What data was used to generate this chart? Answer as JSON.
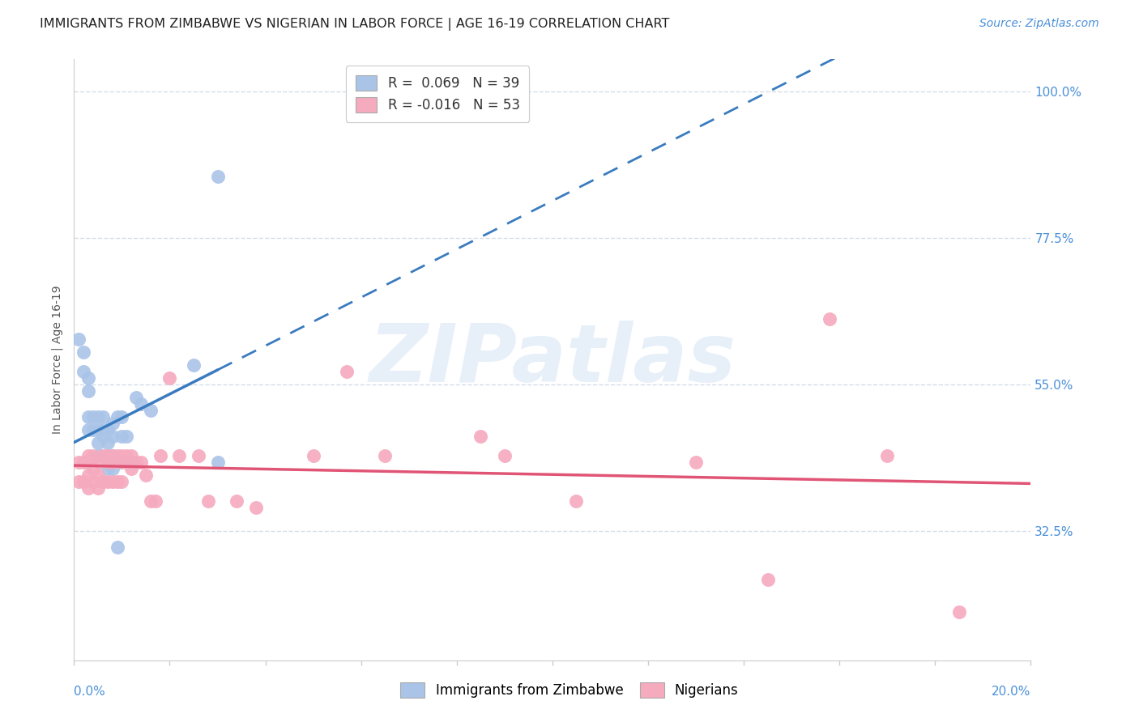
{
  "title": "IMMIGRANTS FROM ZIMBABWE VS NIGERIAN IN LABOR FORCE | AGE 16-19 CORRELATION CHART",
  "source": "Source: ZipAtlas.com",
  "ylabel": "In Labor Force | Age 16-19",
  "ytick_values": [
    0.325,
    0.55,
    0.775,
    1.0
  ],
  "ytick_labels": [
    "32.5%",
    "55.0%",
    "77.5%",
    "100.0%"
  ],
  "xlim": [
    0.0,
    0.2
  ],
  "ylim": [
    0.125,
    1.05
  ],
  "watermark": "ZIPatlas",
  "legend_r1": "R =  0.069",
  "legend_n1": "N = 39",
  "legend_r2": "R = -0.016",
  "legend_n2": "N = 53",
  "zimbabwe_color": "#aac4e8",
  "nigeria_color": "#f5aabe",
  "zimbabwe_line_color": "#3a7bbf",
  "nigeria_line_color": "#e05575",
  "grid_color": "#d5dce8",
  "background_color": "#ffffff",
  "title_color": "#222222",
  "source_color": "#4a90d9",
  "axis_label_color": "#555555",
  "tick_color": "#4a90d9",
  "zimbabwe_points_x": [
    0.001,
    0.002,
    0.002,
    0.003,
    0.003,
    0.003,
    0.003,
    0.004,
    0.004,
    0.005,
    0.005,
    0.005,
    0.005,
    0.006,
    0.006,
    0.006,
    0.006,
    0.007,
    0.007,
    0.007,
    0.007,
    0.007,
    0.008,
    0.008,
    0.008,
    0.008,
    0.009,
    0.009,
    0.01,
    0.01,
    0.01,
    0.011,
    0.012,
    0.013,
    0.014,
    0.016,
    0.025,
    0.03,
    0.03
  ],
  "zimbabwe_points_y": [
    0.62,
    0.6,
    0.57,
    0.56,
    0.54,
    0.5,
    0.48,
    0.5,
    0.48,
    0.5,
    0.48,
    0.46,
    0.44,
    0.5,
    0.48,
    0.47,
    0.44,
    0.48,
    0.46,
    0.44,
    0.43,
    0.42,
    0.49,
    0.47,
    0.44,
    0.42,
    0.5,
    0.3,
    0.5,
    0.47,
    0.43,
    0.47,
    0.43,
    0.53,
    0.52,
    0.51,
    0.58,
    0.87,
    0.43
  ],
  "nigeria_points_x": [
    0.001,
    0.001,
    0.002,
    0.002,
    0.003,
    0.003,
    0.003,
    0.003,
    0.004,
    0.004,
    0.004,
    0.005,
    0.005,
    0.005,
    0.006,
    0.006,
    0.007,
    0.007,
    0.007,
    0.008,
    0.008,
    0.008,
    0.009,
    0.009,
    0.01,
    0.01,
    0.01,
    0.011,
    0.012,
    0.012,
    0.013,
    0.014,
    0.015,
    0.016,
    0.017,
    0.018,
    0.02,
    0.022,
    0.026,
    0.028,
    0.034,
    0.038,
    0.05,
    0.057,
    0.065,
    0.085,
    0.09,
    0.105,
    0.13,
    0.145,
    0.158,
    0.17,
    0.185
  ],
  "nigeria_points_y": [
    0.43,
    0.4,
    0.43,
    0.4,
    0.44,
    0.43,
    0.41,
    0.39,
    0.44,
    0.42,
    0.4,
    0.43,
    0.41,
    0.39,
    0.44,
    0.4,
    0.44,
    0.43,
    0.4,
    0.44,
    0.43,
    0.4,
    0.44,
    0.4,
    0.44,
    0.43,
    0.4,
    0.44,
    0.44,
    0.42,
    0.43,
    0.43,
    0.41,
    0.37,
    0.37,
    0.44,
    0.56,
    0.44,
    0.44,
    0.37,
    0.37,
    0.36,
    0.44,
    0.57,
    0.44,
    0.47,
    0.44,
    0.37,
    0.43,
    0.25,
    0.65,
    0.44,
    0.2
  ],
  "title_fontsize": 11.5,
  "axis_label_fontsize": 10,
  "tick_fontsize": 11,
  "legend_fontsize": 12,
  "source_fontsize": 10
}
